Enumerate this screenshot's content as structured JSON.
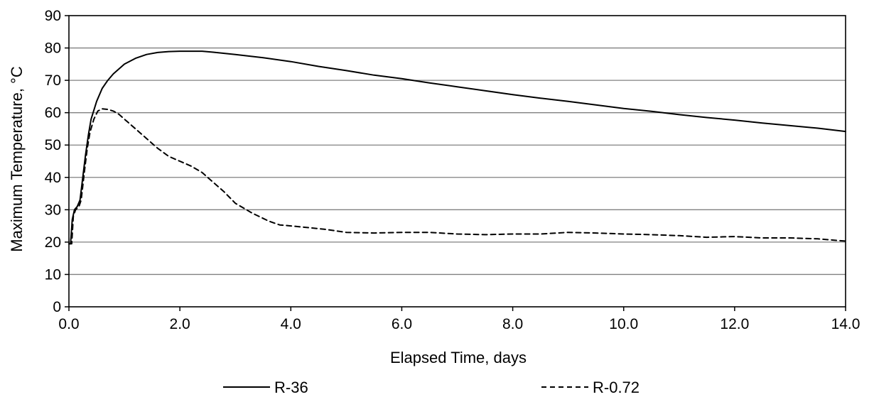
{
  "chart_data": {
    "type": "line",
    "xlabel": "Elapsed Time, days",
    "ylabel": "Maximum Temperature, °C",
    "xlim": [
      0,
      14
    ],
    "ylim": [
      0,
      90
    ],
    "x_ticks": [
      "0.0",
      "2.0",
      "4.0",
      "6.0",
      "8.0",
      "10.0",
      "12.0",
      "14.0"
    ],
    "y_ticks": [
      "0",
      "10",
      "20",
      "30",
      "40",
      "50",
      "60",
      "70",
      "80",
      "90"
    ],
    "grid": "horizontal",
    "legend_position": "bottom",
    "series": [
      {
        "name": "R-36",
        "style": "solid",
        "color": "#000000",
        "points": [
          [
            0.0,
            19.5
          ],
          [
            0.03,
            19.5
          ],
          [
            0.06,
            27
          ],
          [
            0.1,
            30
          ],
          [
            0.15,
            31
          ],
          [
            0.2,
            33
          ],
          [
            0.25,
            40
          ],
          [
            0.3,
            47
          ],
          [
            0.35,
            53
          ],
          [
            0.4,
            58
          ],
          [
            0.5,
            63.5
          ],
          [
            0.6,
            67.5
          ],
          [
            0.7,
            70
          ],
          [
            0.8,
            72
          ],
          [
            1.0,
            75
          ],
          [
            1.2,
            76.8
          ],
          [
            1.4,
            78
          ],
          [
            1.6,
            78.6
          ],
          [
            1.8,
            78.9
          ],
          [
            2.0,
            79
          ],
          [
            2.2,
            79
          ],
          [
            2.4,
            79
          ],
          [
            2.6,
            78.7
          ],
          [
            3.0,
            78
          ],
          [
            3.5,
            77
          ],
          [
            4.0,
            75.8
          ],
          [
            4.5,
            74.3
          ],
          [
            5.0,
            73
          ],
          [
            5.5,
            71.6
          ],
          [
            6.0,
            70.5
          ],
          [
            6.5,
            69.2
          ],
          [
            7.0,
            68
          ],
          [
            7.5,
            66.8
          ],
          [
            8.0,
            65.6
          ],
          [
            8.5,
            64.5
          ],
          [
            9.0,
            63.5
          ],
          [
            9.5,
            62.4
          ],
          [
            10.0,
            61.3
          ],
          [
            10.5,
            60.4
          ],
          [
            11.0,
            59.4
          ],
          [
            11.5,
            58.5
          ],
          [
            12.0,
            57.7
          ],
          [
            12.5,
            56.8
          ],
          [
            13.0,
            56
          ],
          [
            13.5,
            55.2
          ],
          [
            14.0,
            54.2
          ]
        ]
      },
      {
        "name": "R-0.72",
        "style": "dashed",
        "color": "#000000",
        "points": [
          [
            0.0,
            19.5
          ],
          [
            0.05,
            19.5
          ],
          [
            0.08,
            28
          ],
          [
            0.12,
            30
          ],
          [
            0.18,
            31
          ],
          [
            0.22,
            33
          ],
          [
            0.28,
            42
          ],
          [
            0.33,
            49
          ],
          [
            0.38,
            54
          ],
          [
            0.45,
            58
          ],
          [
            0.52,
            60.5
          ],
          [
            0.6,
            61.2
          ],
          [
            0.7,
            61
          ],
          [
            0.8,
            60.5
          ],
          [
            0.9,
            59.5
          ],
          [
            1.0,
            58
          ],
          [
            1.2,
            55
          ],
          [
            1.4,
            52
          ],
          [
            1.6,
            49
          ],
          [
            1.8,
            46.5
          ],
          [
            2.0,
            45
          ],
          [
            2.2,
            43.5
          ],
          [
            2.4,
            41.5
          ],
          [
            2.6,
            38.5
          ],
          [
            2.8,
            35.5
          ],
          [
            3.0,
            32
          ],
          [
            3.3,
            29
          ],
          [
            3.6,
            26.5
          ],
          [
            3.8,
            25.3
          ],
          [
            4.0,
            25
          ],
          [
            4.3,
            24.5
          ],
          [
            4.6,
            24
          ],
          [
            4.8,
            23.5
          ],
          [
            5.0,
            23
          ],
          [
            5.5,
            22.8
          ],
          [
            6.0,
            23
          ],
          [
            6.5,
            23
          ],
          [
            7.0,
            22.5
          ],
          [
            7.5,
            22.3
          ],
          [
            8.0,
            22.5
          ],
          [
            8.5,
            22.5
          ],
          [
            9.0,
            23
          ],
          [
            9.5,
            22.8
          ],
          [
            10.0,
            22.5
          ],
          [
            10.5,
            22.3
          ],
          [
            11.0,
            22
          ],
          [
            11.5,
            21.5
          ],
          [
            12.0,
            21.7
          ],
          [
            12.5,
            21.3
          ],
          [
            13.0,
            21.3
          ],
          [
            13.5,
            21
          ],
          [
            14.0,
            20.3
          ]
        ]
      }
    ]
  }
}
